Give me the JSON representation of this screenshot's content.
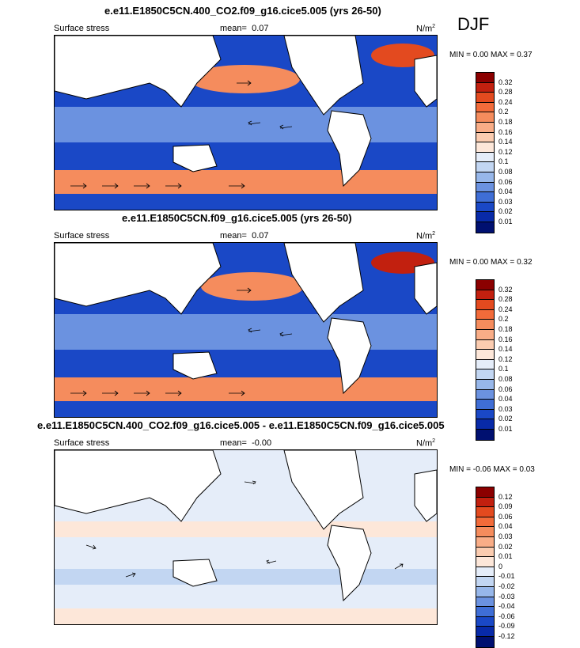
{
  "season": "DJF",
  "panels": [
    {
      "title": "e.e11.E1850C5CN.400_CO2.f09_g16.cice5.005 (yrs 26-50)",
      "left_label": "Surface stress",
      "mean_label": "mean=",
      "mean_value": "0.07",
      "units": "N/m",
      "units_sup": "2",
      "min_label": "MIN =",
      "min_value": "0.00",
      "max_label": "MAX =",
      "max_value": "0.37",
      "colorbar": {
        "labels": [
          "0.32",
          "0.28",
          "0.24",
          "0.2",
          "0.18",
          "0.16",
          "0.14",
          "0.12",
          "0.1",
          "0.08",
          "0.06",
          "0.04",
          "0.03",
          "0.02",
          "0.01"
        ],
        "colors": [
          "#8b0000",
          "#c2200f",
          "#e34a1f",
          "#f26b3a",
          "#f58c5d",
          "#f9ad87",
          "#fbccb0",
          "#fde7d9",
          "#e5edf9",
          "#c2d6f2",
          "#97b7ea",
          "#6b92e0",
          "#3f6ed6",
          "#1a48c6",
          "#082aa8",
          "#001070"
        ]
      }
    },
    {
      "title": "e.e11.E1850C5CN.f09_g16.cice5.005 (yrs 26-50)",
      "left_label": "Surface stress",
      "mean_label": "mean=",
      "mean_value": "0.07",
      "units": "N/m",
      "units_sup": "2",
      "min_label": "MIN =",
      "min_value": "0.00",
      "max_label": "MAX =",
      "max_value": "0.32",
      "colorbar": {
        "labels": [
          "0.32",
          "0.28",
          "0.24",
          "0.2",
          "0.18",
          "0.16",
          "0.14",
          "0.12",
          "0.1",
          "0.08",
          "0.06",
          "0.04",
          "0.03",
          "0.02",
          "0.01"
        ],
        "colors": [
          "#8b0000",
          "#c2200f",
          "#e34a1f",
          "#f26b3a",
          "#f58c5d",
          "#f9ad87",
          "#fbccb0",
          "#fde7d9",
          "#e5edf9",
          "#c2d6f2",
          "#97b7ea",
          "#6b92e0",
          "#3f6ed6",
          "#1a48c6",
          "#082aa8",
          "#001070"
        ]
      }
    },
    {
      "title": "e.e11.E1850C5CN.400_CO2.f09_g16.cice5.005 - e.e11.E1850C5CN.f09_g16.cice5.005",
      "left_label": "Surface stress",
      "mean_label": "mean=",
      "mean_value": "-0.00",
      "units": "N/m",
      "units_sup": "2",
      "min_label": "MIN =",
      "min_value": "-0.06",
      "max_label": "MAX =",
      "max_value": "0.03",
      "colorbar": {
        "labels": [
          "0.12",
          "0.09",
          "0.06",
          "0.04",
          "0.03",
          "0.02",
          "0.01",
          "0",
          "-0.01",
          "-0.02",
          "-0.03",
          "-0.04",
          "-0.06",
          "-0.09",
          "-0.12"
        ],
        "colors": [
          "#8b0000",
          "#c2200f",
          "#e34a1f",
          "#f26b3a",
          "#f58c5d",
          "#f9ad87",
          "#fbccb0",
          "#fde7d9",
          "#e5edf9",
          "#c2d6f2",
          "#97b7ea",
          "#6b92e0",
          "#3f6ed6",
          "#1a48c6",
          "#082aa8",
          "#001070"
        ]
      }
    }
  ]
}
